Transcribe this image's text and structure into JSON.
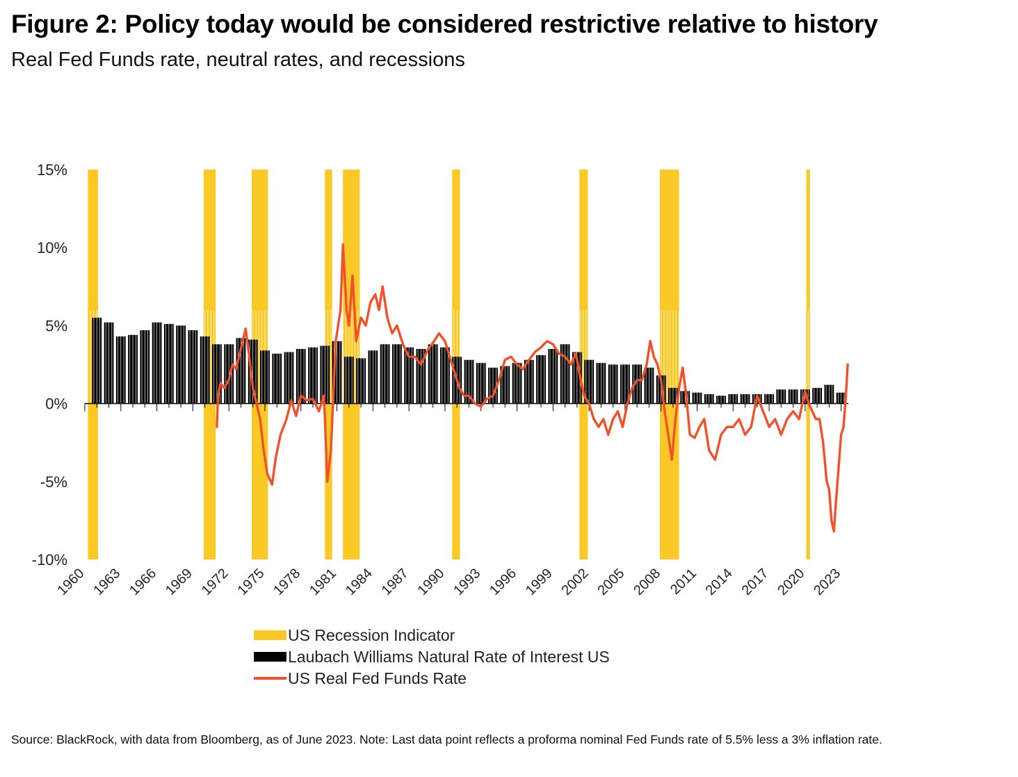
{
  "title": "Figure 2: Policy today would be considered restrictive relative to history",
  "subtitle": "Real Fed Funds rate, neutral rates, and recessions",
  "note": "Source: BlackRock, with data from Bloomberg, as of June 2023. Note: Last data point reflects a proforma nominal Fed Funds rate of 5.5% less a 3% inflation rate.",
  "colors": {
    "recession": "#FBC926",
    "natural_rate": "#000000",
    "real_ffr": "#F0512A",
    "axis": "#000000"
  },
  "chart_data": {
    "type": "bar+line",
    "title": "Figure 2: Policy today would be considered restrictive relative to history",
    "subtitle": "Real Fed Funds rate, neutral rates, and recessions",
    "ylim": [
      -10,
      15
    ],
    "yticks": [
      15,
      10,
      5,
      0,
      -5,
      -10
    ],
    "ytick_labels": [
      "15%",
      "10%",
      "5%",
      "0%",
      "-5%",
      "-10%"
    ],
    "xlim": [
      1960,
      2023.6
    ],
    "xticks": [
      1960,
      1963,
      1966,
      1969,
      1972,
      1975,
      1978,
      1981,
      1984,
      1987,
      1990,
      1993,
      1996,
      1999,
      2002,
      2005,
      2008,
      2011,
      2014,
      2017,
      2020,
      2023
    ],
    "xtick_labels": [
      "1960",
      "1963",
      "1966",
      "1969",
      "1972",
      "1975",
      "1978",
      "1981",
      "1984",
      "1987",
      "1990",
      "1993",
      "1996",
      "1999",
      "2002",
      "2005",
      "2008",
      "2011",
      "2014",
      "2017",
      "2020",
      "2023"
    ],
    "legend": [
      {
        "name": "US Recession Indicator",
        "kind": "box",
        "color": "#FBC926"
      },
      {
        "name": "Laubach Williams Natural Rate of Interest US",
        "kind": "box",
        "color": "#000000"
      },
      {
        "name": "US Real Fed Funds Rate",
        "kind": "line",
        "color": "#F0512A"
      }
    ],
    "recessions": [
      [
        1960.25,
        1961.1
      ],
      [
        1969.9,
        1970.9
      ],
      [
        1973.9,
        1975.25
      ],
      [
        1980.0,
        1980.6
      ],
      [
        1981.5,
        1982.9
      ],
      [
        1990.6,
        1991.25
      ],
      [
        2001.2,
        2001.9
      ],
      [
        2007.9,
        2009.5
      ],
      [
        2020.1,
        2020.4
      ]
    ],
    "natural_rate": {
      "name": "Laubach Williams Natural Rate of Interest US",
      "x": [
        1961,
        1962,
        1963,
        1964,
        1965,
        1966,
        1967,
        1968,
        1969,
        1970,
        1971,
        1972,
        1973,
        1974,
        1975,
        1976,
        1977,
        1978,
        1979,
        1980,
        1981,
        1982,
        1983,
        1984,
        1985,
        1986,
        1987,
        1988,
        1989,
        1990,
        1991,
        1992,
        1993,
        1994,
        1995,
        1996,
        1997,
        1998,
        1999,
        2000,
        2001,
        2002,
        2003,
        2004,
        2005,
        2006,
        2007,
        2008,
        2009,
        2010,
        2011,
        2012,
        2013,
        2014,
        2015,
        2016,
        2017,
        2018,
        2019,
        2020,
        2021,
        2022,
        2023
      ],
      "values": [
        5.5,
        5.2,
        4.3,
        4.4,
        4.7,
        5.2,
        5.1,
        5.0,
        4.7,
        4.3,
        3.8,
        3.8,
        4.2,
        4.1,
        3.4,
        3.2,
        3.3,
        3.5,
        3.6,
        3.7,
        4.0,
        3.0,
        2.9,
        3.4,
        3.8,
        3.8,
        3.6,
        3.5,
        3.8,
        3.6,
        3.0,
        2.8,
        2.6,
        2.3,
        2.4,
        2.6,
        2.8,
        3.1,
        3.5,
        3.8,
        3.3,
        2.8,
        2.6,
        2.5,
        2.5,
        2.5,
        2.3,
        1.8,
        1.0,
        0.8,
        0.7,
        0.6,
        0.5,
        0.6,
        0.6,
        0.6,
        0.6,
        0.9,
        0.9,
        0.9,
        1.0,
        1.2,
        0.7
      ]
    },
    "real_fed_funds": {
      "name": "US Real Fed Funds Rate",
      "x": [
        1971.0,
        1971.1,
        1971.3,
        1971.6,
        1972.0,
        1972.3,
        1972.6,
        1973.0,
        1973.4,
        1973.7,
        1974.0,
        1974.3,
        1974.6,
        1974.9,
        1975.2,
        1975.6,
        1975.9,
        1976.3,
        1976.8,
        1977.2,
        1977.6,
        1978.0,
        1978.5,
        1979.0,
        1979.5,
        1979.9,
        1980.0,
        1980.2,
        1980.5,
        1980.7,
        1980.9,
        1981.1,
        1981.3,
        1981.5,
        1981.8,
        1982.0,
        1982.3,
        1982.6,
        1983.0,
        1983.4,
        1983.8,
        1984.2,
        1984.5,
        1984.8,
        1985.2,
        1985.6,
        1986.0,
        1986.5,
        1987.0,
        1987.5,
        1988.0,
        1988.6,
        1989.1,
        1989.5,
        1990.0,
        1990.4,
        1990.8,
        1991.2,
        1991.6,
        1992.0,
        1992.5,
        1993.0,
        1993.5,
        1994.0,
        1994.5,
        1995.0,
        1995.5,
        1996.0,
        1996.5,
        1997.0,
        1997.5,
        1998.0,
        1998.5,
        1999.0,
        1999.5,
        2000.0,
        2000.5,
        2000.9,
        2001.3,
        2001.6,
        2002.0,
        2002.4,
        2002.8,
        2003.2,
        2003.6,
        2004.0,
        2004.4,
        2004.8,
        2005.2,
        2005.6,
        2006.0,
        2006.4,
        2006.8,
        2007.1,
        2007.4,
        2007.7,
        2008.0,
        2008.3,
        2008.6,
        2008.9,
        2009.2,
        2009.5,
        2009.8,
        2010.1,
        2010.4,
        2010.8,
        2011.2,
        2011.6,
        2012.0,
        2012.5,
        2013.0,
        2013.5,
        2014.0,
        2014.5,
        2015.0,
        2015.5,
        2016.0,
        2016.5,
        2017.0,
        2017.5,
        2018.0,
        2018.5,
        2019.0,
        2019.5,
        2020.0,
        2020.3,
        2020.6,
        2020.9,
        2021.2,
        2021.5,
        2021.8,
        2022.0,
        2022.2,
        2022.4,
        2022.6,
        2022.8,
        2023.0,
        2023.2,
        2023.4,
        2023.55
      ],
      "values": [
        -1.5,
        0.5,
        1.3,
        1.0,
        1.5,
        2.5,
        2.2,
        3.5,
        4.8,
        3.0,
        1.0,
        0.0,
        -1.0,
        -3.0,
        -4.5,
        -5.2,
        -3.5,
        -2.0,
        -1.0,
        0.2,
        -0.8,
        0.5,
        0.2,
        0.3,
        -0.5,
        0.5,
        -1.0,
        -5.0,
        -3.0,
        0.5,
        4.0,
        5.0,
        6.0,
        10.2,
        6.0,
        5.0,
        8.2,
        4.0,
        5.5,
        5.0,
        6.5,
        7.0,
        6.0,
        7.5,
        5.5,
        4.5,
        5.0,
        3.8,
        3.0,
        3.0,
        2.5,
        3.5,
        4.0,
        4.5,
        4.0,
        3.0,
        2.0,
        1.0,
        0.5,
        0.5,
        0.0,
        -0.2,
        0.3,
        0.5,
        1.5,
        2.8,
        3.0,
        2.5,
        2.2,
        2.8,
        3.3,
        3.6,
        4.0,
        3.8,
        3.2,
        3.0,
        2.5,
        3.2,
        1.5,
        0.5,
        0.0,
        -1.0,
        -1.5,
        -1.0,
        -2.0,
        -1.0,
        -0.5,
        -1.5,
        0.0,
        1.0,
        1.5,
        1.5,
        2.5,
        4.0,
        3.0,
        2.5,
        1.5,
        -0.5,
        -2.0,
        -3.6,
        -1.0,
        1.0,
        2.3,
        0.5,
        -2.0,
        -2.2,
        -1.5,
        -1.0,
        -3.0,
        -3.6,
        -2.0,
        -1.5,
        -1.5,
        -1.0,
        -2.0,
        -1.5,
        0.5,
        -0.5,
        -1.5,
        -1.0,
        -2.0,
        -1.0,
        -0.5,
        -1.0,
        0.8,
        0.0,
        -0.5,
        -1.0,
        -1.0,
        -2.5,
        -5.0,
        -5.5,
        -7.5,
        -8.2,
        -6.0,
        -4.0,
        -2.0,
        -1.5,
        0.5,
        2.5
      ]
    }
  }
}
